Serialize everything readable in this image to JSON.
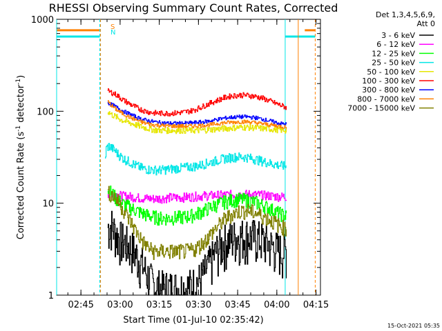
{
  "chart_data": {
    "type": "line",
    "title": "RHESSI Observing Summary Count Rates, Corrected",
    "xlabel": "Start Time (01-Jul-10 02:35:42)",
    "ylabel_main": "Corrected Count Rate (s",
    "ylabel_sup1": "-1",
    "ylabel_mid": " detector",
    "ylabel_sup2": "-1",
    "ylabel_end": ")",
    "yscale": "log",
    "ylim": [
      1,
      1000
    ],
    "xlim_minutes": [
      0,
      101
    ],
    "x_ticks": [
      {
        "label": "02:45",
        "minute": 9.3
      },
      {
        "label": "03:00",
        "minute": 24.3
      },
      {
        "label": "03:15",
        "minute": 39.3
      },
      {
        "label": "03:30",
        "minute": 54.3
      },
      {
        "label": "03:45",
        "minute": 69.3
      },
      {
        "label": "04:00",
        "minute": 84.3
      },
      {
        "label": "04:15",
        "minute": 99.3
      }
    ],
    "y_ticks": [
      {
        "label": "1",
        "value": 1
      },
      {
        "label": "10",
        "value": 10
      },
      {
        "label": "100",
        "value": 100
      },
      {
        "label": "1000",
        "value": 1000
      }
    ],
    "detector_label": "Det 1,3,4,5,6,9,",
    "attenuator_label": "Att 0",
    "saa_flag": "S",
    "night_flag": "N",
    "footer_date": "15-Oct-2021 05:35",
    "flag_colors": {
      "saa": "#ff8000",
      "night": "#00e6e6"
    },
    "flag_bars": [
      {
        "flag": "saa",
        "start": 0,
        "end": 16.5,
        "level": 760
      },
      {
        "flag": "night",
        "start": 0,
        "end": 16.5,
        "level": 650
      },
      {
        "flag": "night",
        "start": 87.5,
        "end": 99,
        "level": 650
      },
      {
        "flag": "saa",
        "start": 95,
        "end": 99,
        "level": 760
      }
    ],
    "markers": [
      {
        "minute": 0,
        "color": "#00e6e6",
        "dashed": false
      },
      {
        "minute": 16.5,
        "color": "#00e6e6",
        "dashed": true
      },
      {
        "minute": 16.8,
        "color": "#ff8000",
        "dashed": true
      },
      {
        "minute": 87.5,
        "color": "#00e6e6",
        "dashed": false
      },
      {
        "minute": 92.5,
        "color": "#ff8000",
        "dashed": false
      },
      {
        "minute": 99,
        "color": "#ff8000",
        "dashed": true
      }
    ],
    "series": [
      {
        "name": "3 - 6 keV",
        "color": "#000000",
        "data": [
          [
            19.5,
            5.5
          ],
          [
            21,
            5.8
          ],
          [
            23,
            4.5
          ],
          [
            25,
            4.0
          ],
          [
            27,
            3.6
          ],
          [
            29,
            3.2
          ],
          [
            31,
            2.6
          ],
          [
            33,
            2.1
          ],
          [
            35,
            1.6
          ],
          [
            37,
            1.3
          ],
          [
            40,
            1.2
          ],
          [
            43,
            1.2
          ],
          [
            46,
            1.2
          ],
          [
            49,
            1.2
          ],
          [
            52,
            1.3
          ],
          [
            55,
            1.5
          ],
          [
            58,
            2.1
          ],
          [
            61,
            3.0
          ],
          [
            64,
            3.8
          ],
          [
            67,
            4.2
          ],
          [
            70,
            4.4
          ],
          [
            73,
            4.5
          ],
          [
            76,
            4.3
          ],
          [
            79,
            4.0
          ],
          [
            82,
            3.5
          ],
          [
            85,
            3.1
          ],
          [
            87,
            3.0
          ],
          [
            88,
            3.0
          ]
        ]
      },
      {
        "name": "6 - 12 keV",
        "color": "#ff00ff",
        "data": [
          [
            19.5,
            12.5
          ],
          [
            22,
            12.5
          ],
          [
            25,
            12.0
          ],
          [
            28,
            11.8
          ],
          [
            31,
            11.5
          ],
          [
            34,
            11.3
          ],
          [
            37,
            11.2
          ],
          [
            40,
            11.3
          ],
          [
            43,
            11.5
          ],
          [
            46,
            11.5
          ],
          [
            49,
            11.6
          ],
          [
            52,
            11.8
          ],
          [
            55,
            12.0
          ],
          [
            58,
            12.1
          ],
          [
            61,
            12.2
          ],
          [
            64,
            12.3
          ],
          [
            67,
            12.4
          ],
          [
            70,
            12.4
          ],
          [
            73,
            12.5
          ],
          [
            76,
            12.4
          ],
          [
            79,
            12.2
          ],
          [
            82,
            12.0
          ],
          [
            85,
            11.8
          ],
          [
            88,
            11.8
          ]
        ]
      },
      {
        "name": "12 - 25 keV",
        "color": "#00ff00",
        "data": [
          [
            19.5,
            14
          ],
          [
            21,
            13
          ],
          [
            23,
            11
          ],
          [
            25,
            10
          ],
          [
            28,
            9
          ],
          [
            31,
            8.2
          ],
          [
            34,
            7.5
          ],
          [
            37,
            7.1
          ],
          [
            40,
            6.9
          ],
          [
            43,
            6.9
          ],
          [
            46,
            7.0
          ],
          [
            49,
            7.1
          ],
          [
            52,
            7.4
          ],
          [
            55,
            8.0
          ],
          [
            58,
            8.8
          ],
          [
            61,
            9.6
          ],
          [
            64,
            10.3
          ],
          [
            67,
            10.8
          ],
          [
            70,
            11.0
          ],
          [
            73,
            10.8
          ],
          [
            76,
            10.3
          ],
          [
            79,
            9.5
          ],
          [
            82,
            8.6
          ],
          [
            85,
            7.8
          ],
          [
            88,
            7.2
          ]
        ]
      },
      {
        "name": "25 - 50 keV",
        "color": "#00e6e6",
        "data": [
          [
            18.5,
            30
          ],
          [
            19,
            40
          ],
          [
            20,
            42
          ],
          [
            22,
            38
          ],
          [
            24,
            33
          ],
          [
            26,
            30
          ],
          [
            28,
            28
          ],
          [
            30,
            26
          ],
          [
            32,
            24.5
          ],
          [
            34,
            23.5
          ],
          [
            37,
            23
          ],
          [
            40,
            23
          ],
          [
            43,
            23.5
          ],
          [
            46,
            24
          ],
          [
            49,
            24.5
          ],
          [
            52,
            25
          ],
          [
            55,
            26
          ],
          [
            58,
            27.5
          ],
          [
            61,
            29
          ],
          [
            64,
            30.5
          ],
          [
            67,
            31.5
          ],
          [
            70,
            32
          ],
          [
            73,
            31.5
          ],
          [
            76,
            30
          ],
          [
            79,
            28.5
          ],
          [
            82,
            27
          ],
          [
            85,
            26
          ],
          [
            88,
            25
          ]
        ]
      },
      {
        "name": "50 - 100 keV",
        "color": "#e6e600",
        "data": [
          [
            19.5,
            100
          ],
          [
            21,
            92
          ],
          [
            23,
            86
          ],
          [
            25,
            80
          ],
          [
            28,
            75
          ],
          [
            31,
            70
          ],
          [
            34,
            66
          ],
          [
            37,
            63
          ],
          [
            40,
            62
          ],
          [
            43,
            62
          ],
          [
            46,
            62
          ],
          [
            49,
            62
          ],
          [
            52,
            62
          ],
          [
            55,
            62
          ],
          [
            58,
            63
          ],
          [
            61,
            64
          ],
          [
            64,
            65
          ],
          [
            67,
            66
          ],
          [
            70,
            67
          ],
          [
            73,
            67
          ],
          [
            76,
            66
          ],
          [
            79,
            65
          ],
          [
            82,
            64
          ],
          [
            85,
            63
          ],
          [
            88,
            62
          ]
        ]
      },
      {
        "name": "100 - 300 keV",
        "color": "#ff0000",
        "data": [
          [
            19.5,
            165
          ],
          [
            21,
            160
          ],
          [
            23,
            150
          ],
          [
            25,
            135
          ],
          [
            28,
            120
          ],
          [
            31,
            108
          ],
          [
            34,
            100
          ],
          [
            37,
            96
          ],
          [
            40,
            95
          ],
          [
            43,
            95
          ],
          [
            46,
            96
          ],
          [
            49,
            98
          ],
          [
            52,
            102
          ],
          [
            55,
            110
          ],
          [
            58,
            120
          ],
          [
            61,
            130
          ],
          [
            64,
            140
          ],
          [
            67,
            147
          ],
          [
            70,
            150
          ],
          [
            73,
            149
          ],
          [
            76,
            145
          ],
          [
            79,
            138
          ],
          [
            82,
            128
          ],
          [
            85,
            118
          ],
          [
            88,
            110
          ]
        ]
      },
      {
        "name": "300 - 800 keV",
        "color": "#0000ff",
        "data": [
          [
            19.5,
            123
          ],
          [
            21,
            118
          ],
          [
            23,
            110
          ],
          [
            25,
            102
          ],
          [
            28,
            93
          ],
          [
            31,
            85
          ],
          [
            34,
            80
          ],
          [
            37,
            77
          ],
          [
            40,
            75
          ],
          [
            43,
            74
          ],
          [
            46,
            74
          ],
          [
            49,
            74
          ],
          [
            52,
            75
          ],
          [
            55,
            76
          ],
          [
            58,
            78
          ],
          [
            61,
            81
          ],
          [
            64,
            84
          ],
          [
            67,
            86
          ],
          [
            70,
            87
          ],
          [
            73,
            87
          ],
          [
            76,
            85
          ],
          [
            79,
            82
          ],
          [
            82,
            78
          ],
          [
            85,
            74
          ],
          [
            88,
            72
          ]
        ]
      },
      {
        "name": "800 - 7000 keV",
        "color": "#ff8000",
        "data": [
          [
            19.5,
            128
          ],
          [
            21,
            115
          ],
          [
            23,
            103
          ],
          [
            25,
            95
          ],
          [
            28,
            86
          ],
          [
            31,
            79
          ],
          [
            34,
            74
          ],
          [
            37,
            71
          ],
          [
            40,
            70
          ],
          [
            43,
            69
          ],
          [
            46,
            69
          ],
          [
            49,
            69
          ],
          [
            52,
            69
          ],
          [
            55,
            70
          ],
          [
            58,
            71
          ],
          [
            61,
            73
          ],
          [
            64,
            75
          ],
          [
            67,
            76
          ],
          [
            70,
            77
          ],
          [
            73,
            77
          ],
          [
            76,
            75
          ],
          [
            79,
            73
          ],
          [
            82,
            71
          ],
          [
            85,
            69
          ],
          [
            88,
            67
          ]
        ]
      },
      {
        "name": "7000 - 15000 keV",
        "color": "#808000",
        "data": [
          [
            19.5,
            13
          ],
          [
            21,
            12.5
          ],
          [
            23,
            11
          ],
          [
            25,
            9
          ],
          [
            27,
            7.2
          ],
          [
            29,
            5.8
          ],
          [
            31,
            4.6
          ],
          [
            33,
            3.8
          ],
          [
            35,
            3.3
          ],
          [
            37,
            3.0
          ],
          [
            40,
            3.0
          ],
          [
            43,
            3.0
          ],
          [
            46,
            3.0
          ],
          [
            49,
            3.0
          ],
          [
            52,
            3.1
          ],
          [
            55,
            3.5
          ],
          [
            58,
            4.3
          ],
          [
            61,
            5.4
          ],
          [
            64,
            6.6
          ],
          [
            67,
            7.6
          ],
          [
            70,
            8.2
          ],
          [
            73,
            8.3
          ],
          [
            76,
            7.9
          ],
          [
            79,
            7.2
          ],
          [
            82,
            6.5
          ],
          [
            85,
            5.8
          ],
          [
            88,
            5.2
          ]
        ]
      }
    ]
  }
}
